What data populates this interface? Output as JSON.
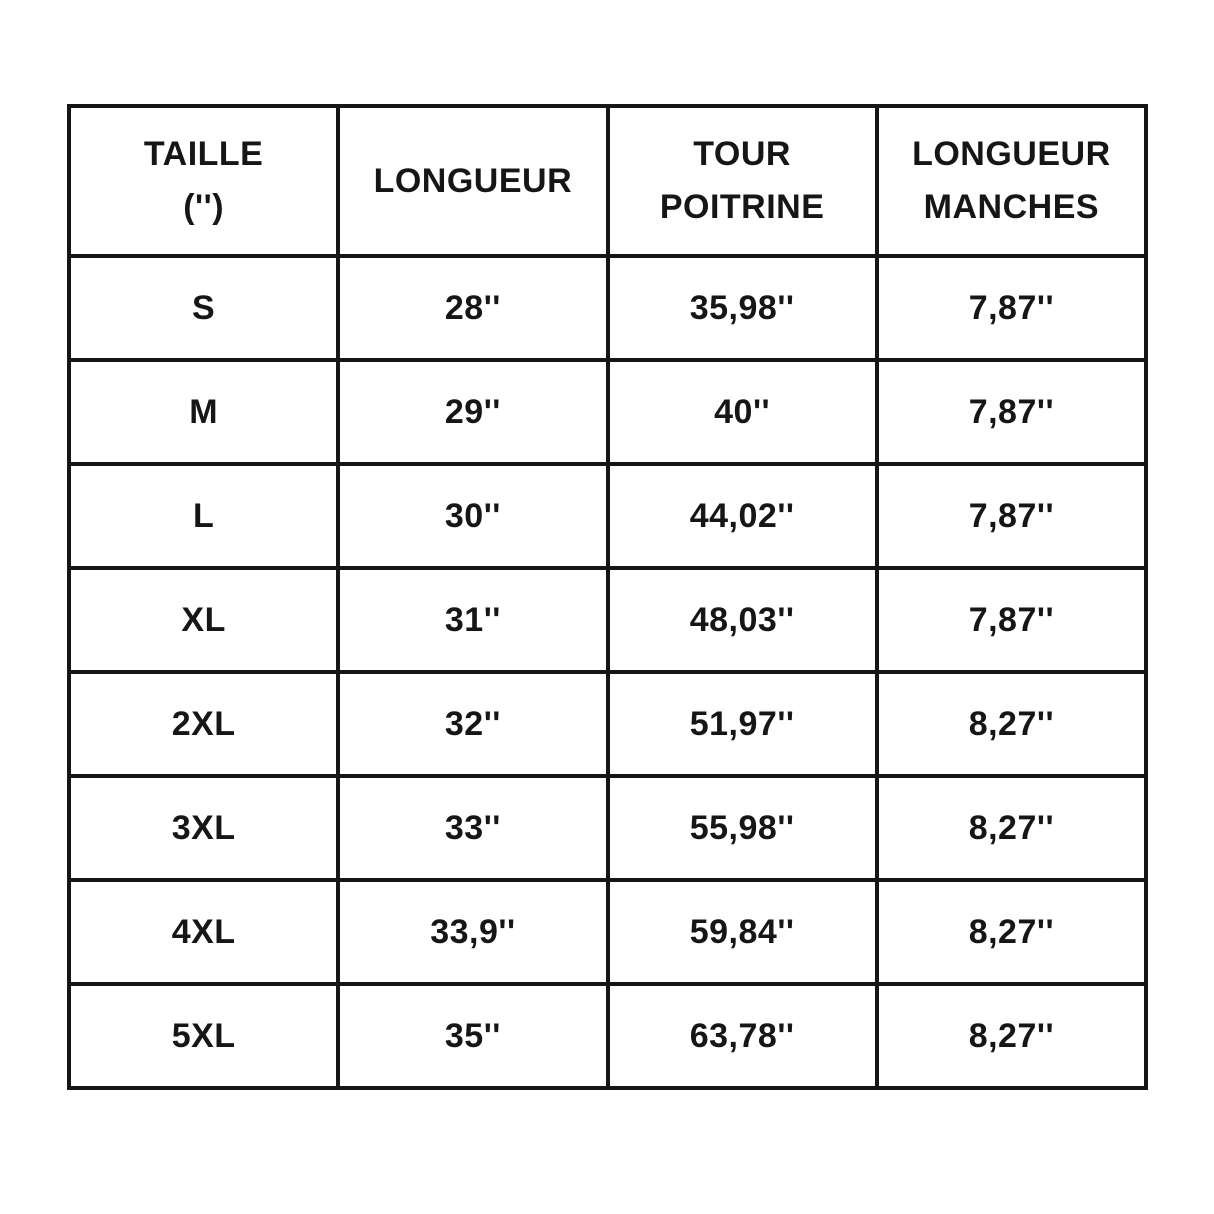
{
  "chart_data": {
    "type": "table",
    "title": "",
    "layout": {
      "grid": "4 equal columns, 1 header row + 8 data rows",
      "background": "#ffffff"
    },
    "colors": {
      "text": "#161616",
      "border": "#161616",
      "background": "#ffffff"
    },
    "headers": [
      {
        "label": "TAILLE ('')",
        "lines": [
          "TAILLE",
          "('')"
        ]
      },
      {
        "label": "LONGUEUR",
        "lines": [
          "LONGUEUR"
        ]
      },
      {
        "label": "TOUR POITRINE",
        "lines": [
          "TOUR",
          "POITRINE"
        ]
      },
      {
        "label": "LONGUEUR MANCHES",
        "lines": [
          "LONGUEUR",
          "MANCHES"
        ]
      }
    ],
    "rows": [
      [
        "S",
        "28''",
        "35,98''",
        "7,87''"
      ],
      [
        "M",
        "29''",
        "40''",
        "7,87''"
      ],
      [
        "L",
        "30''",
        "44,02''",
        "7,87''"
      ],
      [
        "XL",
        "31''",
        "48,03''",
        "7,87''"
      ],
      [
        "2XL",
        "32''",
        "51,97''",
        "8,27''"
      ],
      [
        "3XL",
        "33''",
        "55,98''",
        "8,27''"
      ],
      [
        "4XL",
        "33,9''",
        "59,84''",
        "8,27''"
      ],
      [
        "5XL",
        "35''",
        "63,78''",
        "8,27''"
      ]
    ]
  }
}
